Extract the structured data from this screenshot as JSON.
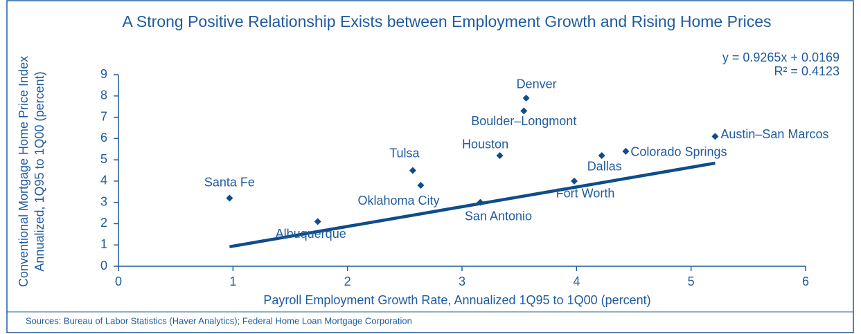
{
  "chart_data": {
    "type": "scatter",
    "title": "A Strong Positive Relationship Exists between Employment Growth and Rising Home Prices",
    "xlabel": "Payroll Employment Growth Rate, Annualized 1Q95 to 1Q00 (percent)",
    "ylabel": [
      "Conventional Mortgage Home Price Index",
      "Annualized, 1Q95 to 1Q00 (percent)"
    ],
    "source": "Sources: Bureau of Labor Statistics (Haver Analytics); Federal Home Loan Mortgage Corporation",
    "color": "#0f4c8a",
    "series": [
      {
        "name": null,
        "labels": [
          "Santa Fe",
          "Albuquerque",
          "Tulsa",
          "Oklahoma City",
          "Houston",
          "San Antonio",
          "Denver",
          "Boulder–Longmont",
          "Fort Worth",
          "Dallas",
          "Colorado Springs",
          "Austin–San Marcos"
        ],
        "x": [
          0.97,
          1.74,
          2.57,
          2.64,
          3.33,
          3.16,
          3.56,
          3.54,
          3.98,
          4.22,
          4.43,
          5.21
        ],
        "values": [
          3.2,
          2.1,
          4.5,
          3.8,
          5.2,
          3.0,
          7.9,
          7.3,
          4.0,
          5.2,
          5.4,
          6.1
        ]
      }
    ],
    "trendline": {
      "slope": 0.9265,
      "intercept": 0.0169,
      "equation": "y = 0.9265x + 0.0169",
      "r_squared": "R² = 0.4123"
    },
    "xlim": [
      0,
      6
    ],
    "xticks": [
      0,
      1,
      2,
      3,
      4,
      5,
      6
    ],
    "ylim": [
      0,
      9
    ],
    "yticks": [
      0,
      1,
      2,
      3,
      4,
      5,
      6,
      7,
      8,
      9
    ]
  }
}
